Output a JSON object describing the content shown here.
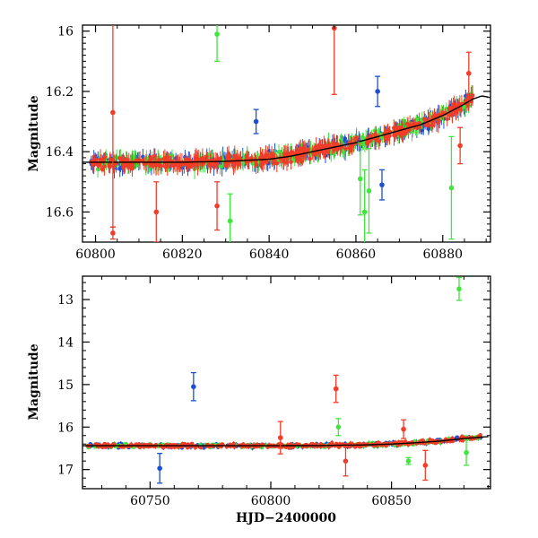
{
  "chart_data": [
    {
      "type": "scatter",
      "title": "",
      "xlabel": "",
      "ylabel": "Magnitude",
      "xlim": [
        60797,
        60891
      ],
      "ylim": [
        15.98,
        16.7
      ],
      "y_inverted": true,
      "x_ticks": [
        60800,
        60820,
        60840,
        60860,
        60880
      ],
      "x_tick_labels": [
        "60800",
        "60820",
        "60840",
        "60860",
        "60880"
      ],
      "y_ticks": [
        16.0,
        16.2,
        16.4,
        16.6
      ],
      "y_tick_labels": [
        "16",
        "16.2",
        "16.4",
        "16.6"
      ],
      "grid": false,
      "legend": "none",
      "series_colors": {
        "blue": "#1a4fd6",
        "green": "#3ee63e",
        "red": "#f23c28"
      },
      "model_curve": {
        "x": [
          60797,
          60810,
          60820,
          60830,
          60840,
          60845,
          60850,
          60855,
          60860,
          60865,
          60870,
          60875,
          60880,
          60884,
          60887,
          60889,
          60891
        ],
        "y": [
          16.435,
          16.435,
          16.435,
          16.432,
          16.425,
          16.415,
          16.4,
          16.385,
          16.37,
          16.35,
          16.33,
          16.31,
          16.28,
          16.25,
          16.225,
          16.215,
          16.22
        ]
      },
      "outliers": [
        {
          "series": "red",
          "x": 60804,
          "y": 16.27,
          "err": 0.38
        },
        {
          "series": "red",
          "x": 60804,
          "y": 16.67,
          "err": 0.02
        },
        {
          "series": "red",
          "x": 60814,
          "y": 16.6,
          "err": 0.1
        },
        {
          "series": "green",
          "x": 60828,
          "y": 16.01,
          "err": 0.09
        },
        {
          "series": "red",
          "x": 60828,
          "y": 16.58,
          "err": 0.08
        },
        {
          "series": "green",
          "x": 60831,
          "y": 16.63,
          "err": 0.09
        },
        {
          "series": "blue",
          "x": 60837,
          "y": 16.3,
          "err": 0.04
        },
        {
          "series": "red",
          "x": 60855,
          "y": 15.99,
          "err": 0.22
        },
        {
          "series": "green",
          "x": 60861,
          "y": 16.49,
          "err": 0.12
        },
        {
          "series": "green",
          "x": 60862,
          "y": 16.6,
          "err": 0.14
        },
        {
          "series": "green",
          "x": 60863,
          "y": 16.53,
          "err": 0.14
        },
        {
          "series": "blue",
          "x": 60865,
          "y": 16.2,
          "err": 0.05
        },
        {
          "series": "blue",
          "x": 60866,
          "y": 16.51,
          "err": 0.05
        },
        {
          "series": "green",
          "x": 60882,
          "y": 16.52,
          "err": 0.17
        },
        {
          "series": "red",
          "x": 60884,
          "y": 16.38,
          "err": 0.06
        },
        {
          "series": "red",
          "x": 60886,
          "y": 16.14,
          "err": 0.07
        }
      ]
    },
    {
      "type": "scatter",
      "title": "",
      "xlabel": "HJD−2400000",
      "ylabel": "Magnitude",
      "xlim": [
        60722,
        60891
      ],
      "ylim": [
        12.45,
        17.45
      ],
      "y_inverted": true,
      "x_ticks": [
        60750,
        60800,
        60850
      ],
      "x_tick_labels": [
        "60750",
        "60800",
        "60850"
      ],
      "y_ticks": [
        13,
        14,
        15,
        16,
        17
      ],
      "y_tick_labels": [
        "13",
        "14",
        "15",
        "16",
        "17"
      ],
      "grid": false,
      "legend": "none",
      "series_colors": {
        "blue": "#1a4fd6",
        "green": "#3ee63e",
        "red": "#f23c28"
      },
      "model_curve": {
        "x": [
          60722,
          60750,
          60780,
          60800,
          60820,
          60840,
          60850,
          60860,
          60870,
          60880,
          60891
        ],
        "y": [
          16.44,
          16.44,
          16.44,
          16.44,
          16.435,
          16.42,
          16.4,
          16.37,
          16.33,
          16.27,
          16.22
        ]
      },
      "outliers": [
        {
          "series": "blue",
          "x": 60754,
          "y": 16.97,
          "err": 0.35
        },
        {
          "series": "blue",
          "x": 60768,
          "y": 15.05,
          "err": 0.33
        },
        {
          "series": "red",
          "x": 60804,
          "y": 16.25,
          "err": 0.38
        },
        {
          "series": "red",
          "x": 60827,
          "y": 15.1,
          "err": 0.32
        },
        {
          "series": "green",
          "x": 60828,
          "y": 16.0,
          "err": 0.2
        },
        {
          "series": "red",
          "x": 60831,
          "y": 16.8,
          "err": 0.35
        },
        {
          "series": "red",
          "x": 60855,
          "y": 16.05,
          "err": 0.22
        },
        {
          "series": "green",
          "x": 60857,
          "y": 16.8,
          "err": 0.08
        },
        {
          "series": "red",
          "x": 60864,
          "y": 16.9,
          "err": 0.35
        },
        {
          "series": "green",
          "x": 60878,
          "y": 12.75,
          "err": 0.27
        },
        {
          "series": "green",
          "x": 60881,
          "y": 16.6,
          "err": 0.3
        }
      ]
    }
  ]
}
